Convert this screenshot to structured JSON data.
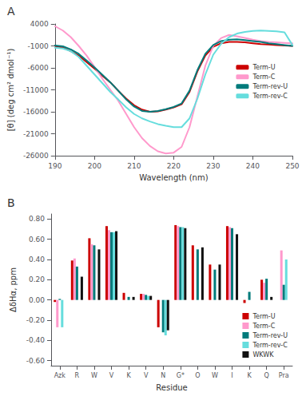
{
  "chart_data": [
    {
      "type": "line",
      "title": "A",
      "xlabel": "Wavelength (nm)",
      "ylabel": "[θ] (deg cm² dmol⁻¹)",
      "x": [
        190,
        192,
        194,
        196,
        198,
        200,
        202,
        204,
        206,
        208,
        210,
        212,
        214,
        216,
        218,
        220,
        222,
        224,
        226,
        228,
        230,
        232,
        234,
        236,
        238,
        240,
        242,
        244,
        246,
        248,
        250
      ],
      "series": [
        {
          "name": "Term-U",
          "color": "#cc0000",
          "values": [
            -1000,
            -1400,
            -2200,
            -3200,
            -4700,
            -6200,
            -7800,
            -9300,
            -11200,
            -13000,
            -14500,
            -15500,
            -16000,
            -15900,
            -15500,
            -15000,
            -14300,
            -11500,
            -6800,
            -3200,
            -1200,
            -400,
            -100,
            -100,
            -200,
            -400,
            -600,
            -700,
            -800,
            -900,
            -1000
          ]
        },
        {
          "name": "Term-C",
          "color": "#ff99cc",
          "values": [
            3500,
            2500,
            1000,
            -1000,
            -3200,
            -5800,
            -8500,
            -11000,
            -13500,
            -16500,
            -19500,
            -22000,
            -23800,
            -25000,
            -25500,
            -25300,
            -24000,
            -19500,
            -12500,
            -5500,
            -1000,
            800,
            1500,
            1200,
            800,
            400,
            100,
            -100,
            -200,
            -300,
            -400
          ]
        },
        {
          "name": "Term-rev-U",
          "color": "#007b7b",
          "values": [
            -900,
            -1100,
            -1800,
            -2800,
            -4300,
            -5900,
            -7600,
            -9300,
            -11200,
            -13200,
            -14800,
            -15800,
            -16000,
            -15800,
            -15400,
            -14900,
            -14100,
            -11200,
            -6500,
            -2800,
            -800,
            100,
            400,
            500,
            300,
            100,
            -100,
            -400,
            -600,
            -800,
            -1000
          ]
        },
        {
          "name": "Term-rev-C",
          "color": "#66dddd",
          "values": [
            -1400,
            -1600,
            -2200,
            -3500,
            -5500,
            -7500,
            -9500,
            -11500,
            -13200,
            -15000,
            -16500,
            -17500,
            -18200,
            -18800,
            -19200,
            -19500,
            -19500,
            -17500,
            -13000,
            -7500,
            -3000,
            -500,
            1000,
            1800,
            2200,
            2400,
            2500,
            2400,
            2300,
            2100,
            -800
          ]
        }
      ],
      "xlim": [
        190,
        250
      ],
      "xticks": [
        190,
        200,
        210,
        220,
        230,
        240,
        250
      ],
      "ylim": [
        -26000,
        4000
      ],
      "yticks": [
        4000,
        -1000,
        -6000,
        -11000,
        -16000,
        -21000,
        -26000
      ],
      "grid": false,
      "legend": "right"
    },
    {
      "type": "bar",
      "title": "B",
      "xlabel": "Residue",
      "ylabel": "ΔδHα, ppm",
      "categories": [
        "Azk",
        "R",
        "W",
        "V",
        "K",
        "V",
        "N",
        "G*",
        "O",
        "W",
        "I",
        "K",
        "Q",
        "Pra"
      ],
      "series": [
        {
          "name": "Term-U",
          "color": "#cc0000",
          "values": [
            -0.02,
            0.39,
            0.61,
            0.73,
            0.07,
            0.06,
            -0.27,
            0.74,
            0.54,
            0.35,
            0.73,
            -0.03,
            0.2,
            0.0
          ]
        },
        {
          "name": "Term-C",
          "color": "#ff99cc",
          "values": [
            -0.27,
            0.41,
            0.55,
            0.69,
            0.0,
            0.06,
            0.0,
            0.73,
            0.0,
            0.0,
            0.72,
            0.0,
            0.17,
            0.49
          ]
        },
        {
          "name": "Term-rev-U",
          "color": "#007b7b",
          "values": [
            0.01,
            0.33,
            0.54,
            0.67,
            0.03,
            0.05,
            -0.32,
            0.72,
            0.5,
            0.3,
            0.71,
            0.08,
            0.21,
            0.15
          ]
        },
        {
          "name": "Term-rev-C",
          "color": "#66dddd",
          "values": [
            -0.27,
            0.0,
            0.0,
            0.67,
            0.0,
            0.04,
            -0.35,
            0.72,
            0.0,
            0.0,
            0.0,
            0.0,
            0.0,
            0.4
          ]
        },
        {
          "name": "WKWK",
          "color": "#111111",
          "values": [
            0.0,
            0.23,
            0.5,
            0.68,
            0.03,
            0.04,
            -0.3,
            0.71,
            0.52,
            0.35,
            0.65,
            0.0,
            0.03,
            0.0
          ]
        }
      ],
      "ylim": [
        -0.65,
        0.85
      ],
      "yticks": [
        {
          "value": -0.6,
          "label": "-0.60"
        },
        {
          "value": -0.4,
          "label": "-0.40"
        },
        {
          "value": -0.2,
          "label": "-0.20"
        },
        {
          "value": 0.0,
          "label": "0.00"
        },
        {
          "value": 0.2,
          "label": "0.20"
        },
        {
          "value": 0.4,
          "label": "0.40"
        },
        {
          "value": 0.6,
          "label": "0.60"
        },
        {
          "value": 0.8,
          "label": "0.80"
        }
      ],
      "grid": false,
      "legend": "lower right"
    }
  ]
}
